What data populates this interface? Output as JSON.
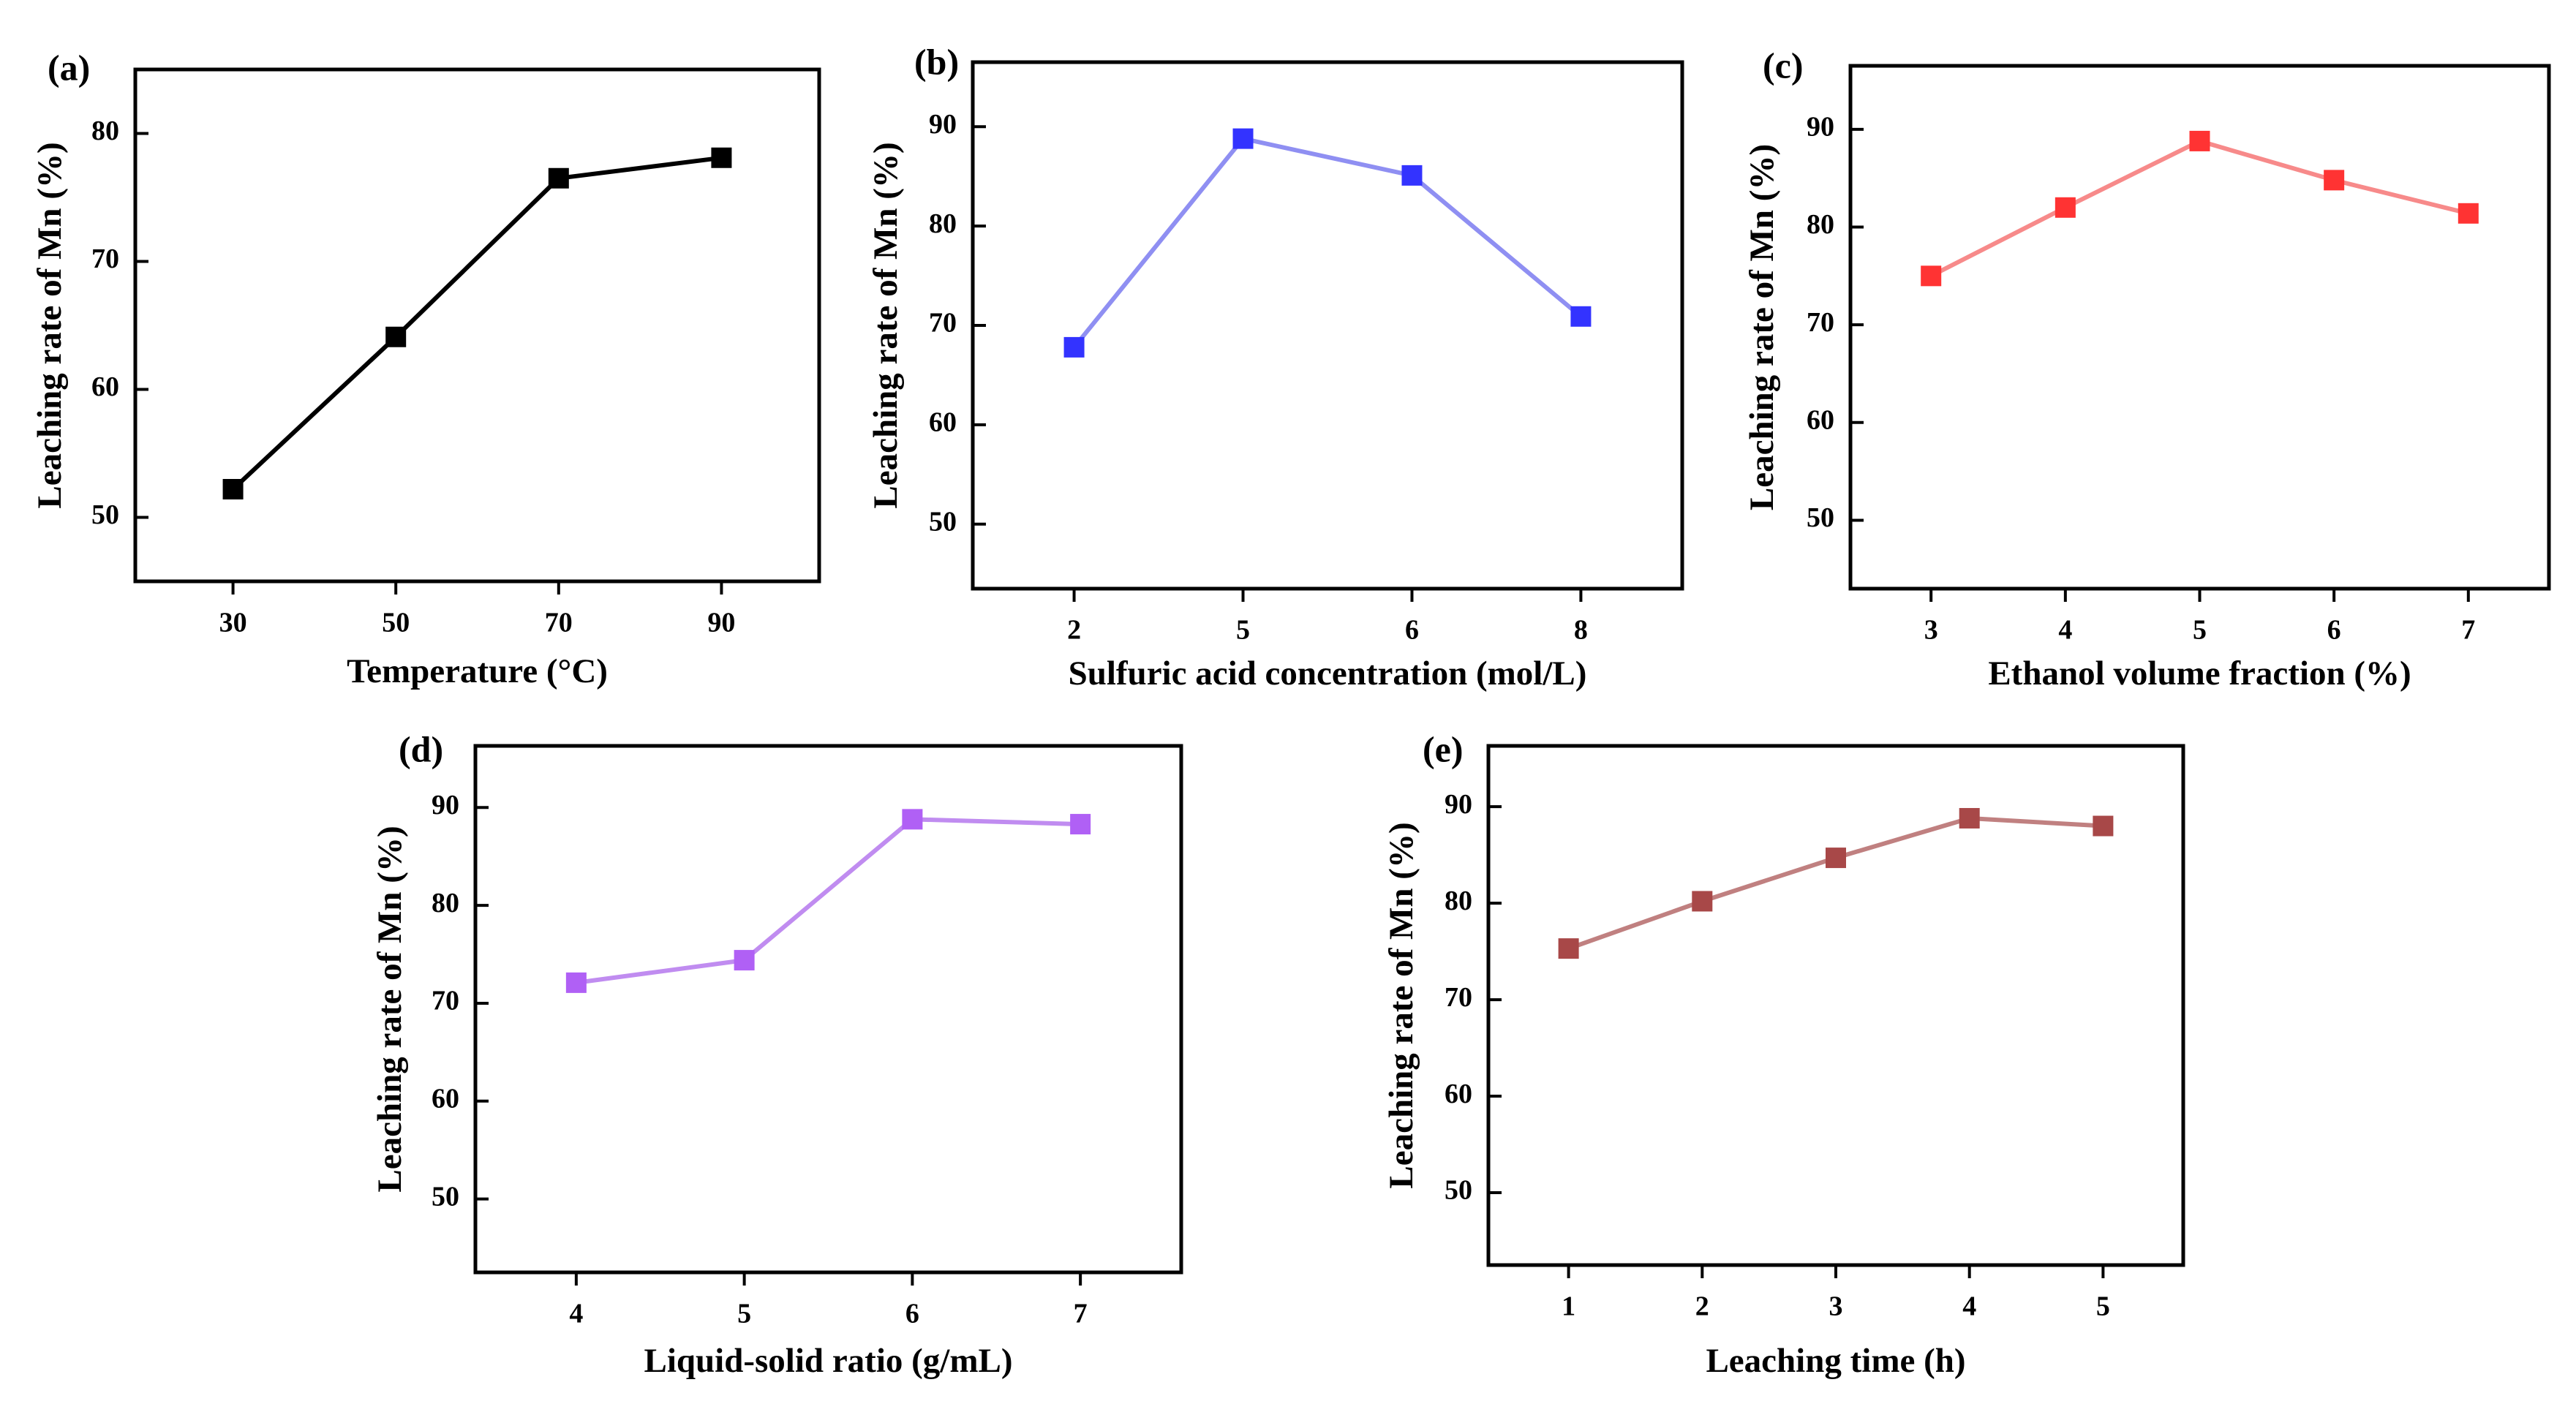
{
  "chart_data": [
    {
      "type": "line",
      "panel": "(a)",
      "categories": [
        "30",
        "50",
        "70",
        "90"
      ],
      "series": [
        {
          "name": "Mn",
          "values": [
            52.2,
            64.1,
            76.5,
            78.1
          ],
          "color": "#000000"
        }
      ],
      "xlabel": "Temperature (°C)",
      "ylabel": "Leaching rate of Mn (%)",
      "ylim": [
        45,
        85
      ],
      "yticks": [
        50,
        60,
        70,
        80
      ],
      "grid": false
    },
    {
      "type": "line",
      "panel": "(b)",
      "categories": [
        "2",
        "5",
        "6",
        "8"
      ],
      "series": [
        {
          "name": "Mn",
          "values": [
            67.8,
            88.8,
            85.1,
            70.9
          ],
          "color": "#3333ff",
          "line_color": "#8f8ff2"
        }
      ],
      "xlabel": "Sulfuric acid concentration (mol/L)",
      "ylabel": "Leaching rate of Mn (%)",
      "ylim": [
        43.5,
        96.5
      ],
      "yticks": [
        50,
        60,
        70,
        80,
        90
      ],
      "grid": false
    },
    {
      "type": "line",
      "panel": "(c)",
      "categories": [
        "3",
        "4",
        "5",
        "6",
        "7"
      ],
      "series": [
        {
          "name": "Mn",
          "values": [
            75.0,
            82.0,
            88.8,
            84.8,
            81.4
          ],
          "color": "#ff3333",
          "line_color": "#f78a8a"
        }
      ],
      "xlabel": "Ethanol volume fraction (%)",
      "ylabel": "Leaching rate of Mn (%)",
      "ylim": [
        43.0,
        96.5
      ],
      "yticks": [
        50,
        60,
        70,
        80,
        90
      ],
      "grid": false
    },
    {
      "type": "line",
      "panel": "(d)",
      "categories": [
        "4",
        "5",
        "6",
        "7"
      ],
      "series": [
        {
          "name": "Mn",
          "values": [
            72.1,
            74.4,
            88.8,
            88.3
          ],
          "color": "#b060f5",
          "line_color": "#c08cf0"
        }
      ],
      "xlabel": "Liquid-solid ratio (g/mL)",
      "ylabel": "Leaching rate of Mn (%)",
      "ylim": [
        42.5,
        96.3
      ],
      "yticks": [
        50,
        60,
        70,
        80,
        90
      ],
      "grid": false
    },
    {
      "type": "line",
      "panel": "(e)",
      "categories": [
        "1",
        "2",
        "3",
        "4",
        "5"
      ],
      "series": [
        {
          "name": "Mn",
          "values": [
            75.3,
            80.2,
            84.7,
            88.8,
            88.0
          ],
          "color": "#a84848",
          "line_color": "#c08080"
        }
      ],
      "xlabel": "Leaching time (h)",
      "ylabel": "Leaching rate of Mn (%)",
      "ylim": [
        42.5,
        96.3
      ],
      "yticks": [
        50,
        60,
        70,
        80,
        90
      ],
      "grid": false
    }
  ]
}
